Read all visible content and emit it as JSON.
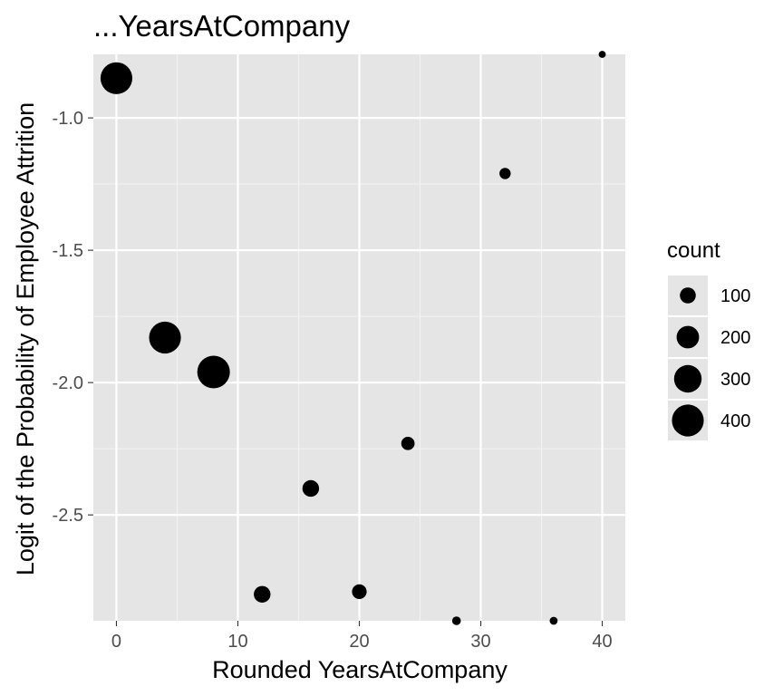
{
  "chart_data": {
    "type": "scatter",
    "title": "...YearsAtCompany",
    "xlabel": "Rounded YearsAtCompany",
    "ylabel": "Logit of the Probability of Employee Attrition",
    "xlim": [
      -1.9,
      41.9
    ],
    "ylim": [
      -2.9,
      -0.76
    ],
    "x_ticks": [
      0,
      10,
      20,
      30,
      40
    ],
    "x_tick_labels": [
      "0",
      "10",
      "20",
      "30",
      "40"
    ],
    "y_ticks": [
      -2.5,
      -2.0,
      -1.5,
      -1.0
    ],
    "y_tick_labels": [
      "-2.5",
      "-2.0",
      "-1.5",
      "-1.0"
    ],
    "grid": true,
    "panel_background": "#e5e5e5",
    "point_color": "#000000",
    "points": [
      {
        "x": 0,
        "y": -0.85,
        "count": 400
      },
      {
        "x": 4,
        "y": -1.83,
        "count": 400
      },
      {
        "x": 8,
        "y": -1.96,
        "count": 420
      },
      {
        "x": 12,
        "y": -2.8,
        "count": 110
      },
      {
        "x": 16,
        "y": -2.4,
        "count": 110
      },
      {
        "x": 20,
        "y": -2.79,
        "count": 85
      },
      {
        "x": 24,
        "y": -2.23,
        "count": 70
      },
      {
        "x": 28,
        "y": -2.9,
        "count": 30
      },
      {
        "x": 32,
        "y": -1.21,
        "count": 50
      },
      {
        "x": 36,
        "y": -2.9,
        "count": 25
      },
      {
        "x": 40,
        "y": -0.76,
        "count": 20
      }
    ],
    "legend": {
      "title": "count",
      "position": "right",
      "entries": [
        {
          "label": "100",
          "count": 100
        },
        {
          "label": "200",
          "count": 200
        },
        {
          "label": "300",
          "count": 300
        },
        {
          "label": "400",
          "count": 400
        }
      ]
    }
  }
}
